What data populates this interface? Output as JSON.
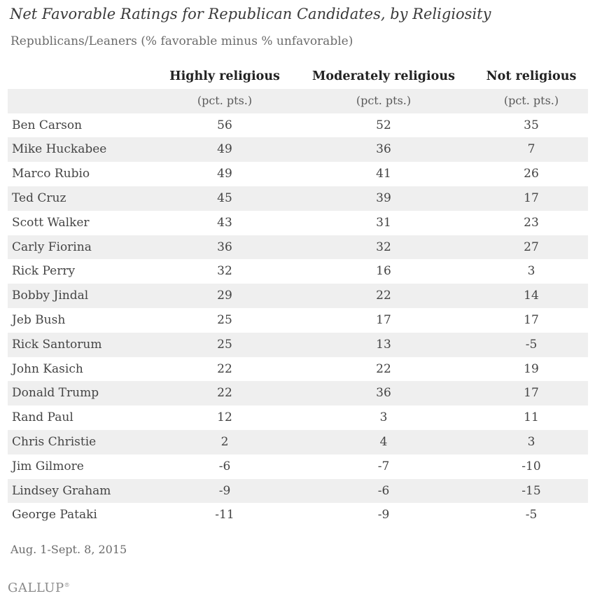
{
  "chart_data": {
    "type": "table",
    "title": "Net Favorable Ratings for Republican Candidates, by Religiosity",
    "subtitle": "Republicans/Leaners (% favorable minus % unfavorable)",
    "columns": [
      "Highly religious",
      "Moderately religious",
      "Not religious"
    ],
    "unit_label": "(pct. pts.)",
    "rows": [
      {
        "name": "Ben Carson",
        "values": [
          56,
          52,
          35
        ]
      },
      {
        "name": "Mike Huckabee",
        "values": [
          49,
          36,
          7
        ]
      },
      {
        "name": "Marco Rubio",
        "values": [
          49,
          41,
          26
        ]
      },
      {
        "name": "Ted Cruz",
        "values": [
          45,
          39,
          17
        ]
      },
      {
        "name": "Scott Walker",
        "values": [
          43,
          31,
          23
        ]
      },
      {
        "name": "Carly Fiorina",
        "values": [
          36,
          32,
          27
        ]
      },
      {
        "name": "Rick Perry",
        "values": [
          32,
          16,
          3
        ]
      },
      {
        "name": "Bobby Jindal",
        "values": [
          29,
          22,
          14
        ]
      },
      {
        "name": "Jeb Bush",
        "values": [
          25,
          17,
          17
        ]
      },
      {
        "name": "Rick Santorum",
        "values": [
          25,
          13,
          -5
        ]
      },
      {
        "name": "John Kasich",
        "values": [
          22,
          22,
          19
        ]
      },
      {
        "name": "Donald Trump",
        "values": [
          22,
          36,
          17
        ]
      },
      {
        "name": "Rand Paul",
        "values": [
          12,
          3,
          11
        ]
      },
      {
        "name": "Chris Christie",
        "values": [
          2,
          4,
          3
        ]
      },
      {
        "name": "Jim Gilmore",
        "values": [
          -6,
          -7,
          -10
        ]
      },
      {
        "name": "Lindsey Graham",
        "values": [
          -9,
          -6,
          -15
        ]
      },
      {
        "name": "George Pataki",
        "values": [
          -11,
          -9,
          -5
        ]
      }
    ],
    "footnote": "Aug. 1-Sept. 8, 2015",
    "source": "GALLUP"
  }
}
